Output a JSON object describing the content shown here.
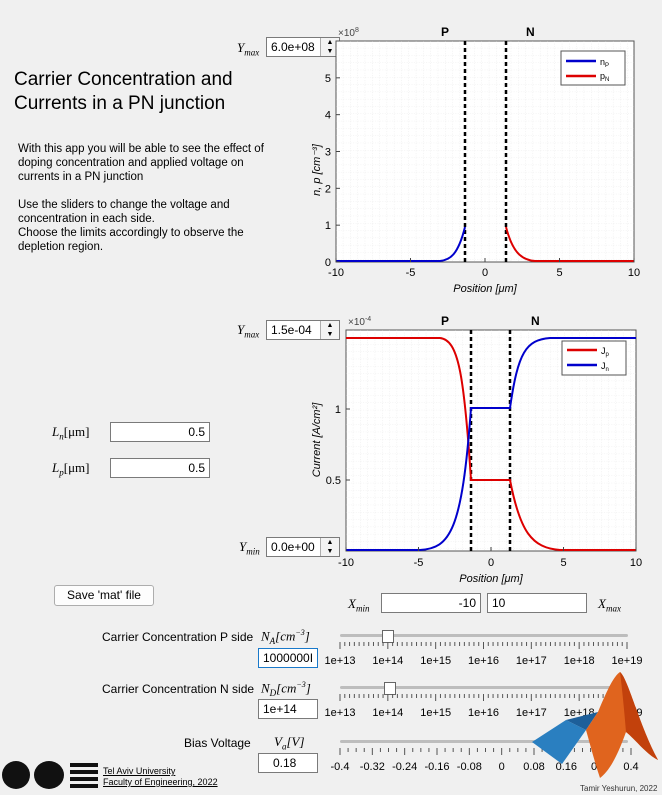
{
  "title_line1": "Carrier Concentration and",
  "title_line2": "Currents in a PN junction",
  "desc_p1": "With this app you will be able to see the effect of doping concentration and applied voltage on currents in a PN junction",
  "desc_p2a": "Use the sliders to change the voltage and concentration in each side.",
  "desc_p2b": "Choose the limits accordingly to observe the depletion region.",
  "plot1": {
    "ymax_label": "Y",
    "ymax_sub": "max",
    "ymax_value": "6.0e+08",
    "exponent": "×10",
    "exponent_power": "8",
    "region_p": "P",
    "region_n": "N",
    "ylabel": "n, p [cm⁻³]",
    "xlabel": "Position [μm]",
    "legend": [
      "n",
      "p"
    ],
    "legend_sub": [
      "P",
      "N"
    ],
    "xticks": [
      "-10",
      "-5",
      "0",
      "5",
      "10"
    ],
    "yticks": [
      "0",
      "1",
      "2",
      "3",
      "4",
      "5"
    ]
  },
  "plot2": {
    "ymax_label": "Y",
    "ymax_sub": "max",
    "ymax_value": "1.5e-04",
    "ymin_label": "Y",
    "ymin_sub": "min",
    "ymin_value": "0.0e+00",
    "exponent": "×10",
    "exponent_power": "-4",
    "region_p": "P",
    "region_n": "N",
    "ylabel": "Current [A/cm²]",
    "xlabel": "Position [μm]",
    "legend": [
      "J",
      "J"
    ],
    "legend_sub": [
      "p",
      "n"
    ],
    "xticks": [
      "-10",
      "-5",
      "0",
      "5",
      "10"
    ],
    "yticks": [
      "0.5",
      "1"
    ]
  },
  "ln_label": "L",
  "ln_sub": "n",
  "ln_unit": "[μm]",
  "ln_value": "0.5",
  "lp_label": "L",
  "lp_sub": "p",
  "lp_unit": "[μm]",
  "lp_value": "0.5",
  "save_button": "Save 'mat' file",
  "xmin_label": "X",
  "xmin_sub": "min",
  "xmin_value": "-10",
  "xmax_label": "X",
  "xmax_sub": "max",
  "xmax_value": "10",
  "na_label": "Carrier Concentration P side",
  "na_symbol": "N",
  "na_sub": "A",
  "na_unit": "[cm",
  "na_unit_pow": "−3",
  "na_unit_end": "]",
  "na_value": "1000000I",
  "nd_label": "Carrier Concentration N side",
  "nd_symbol": "N",
  "nd_sub": "D",
  "nd_unit": "[cm",
  "nd_unit_pow": "−3",
  "nd_unit_end": "]",
  "nd_value": "1e+14",
  "conc_ticks": [
    "1e+13",
    "1e+14",
    "1e+15",
    "1e+16",
    "1e+17",
    "1e+18",
    "1e+19"
  ],
  "bias_label": "Bias Voltage",
  "va_symbol": "V",
  "va_sub": "a",
  "va_unit": "[V]",
  "va_value": "0.18",
  "bias_ticks": [
    "-0.4",
    "-0.32",
    "-0.24",
    "-0.16",
    "-0.08",
    "0",
    "0.08",
    "0.16",
    "0.2",
    "0.4"
  ],
  "univ_line1": "Tel Aviv University",
  "univ_line2": "Faculty of Engineering, 2022",
  "author": "Tamir Yeshurun, 2022",
  "colors": {
    "blue": "#0000cc",
    "red": "#dd0000"
  }
}
